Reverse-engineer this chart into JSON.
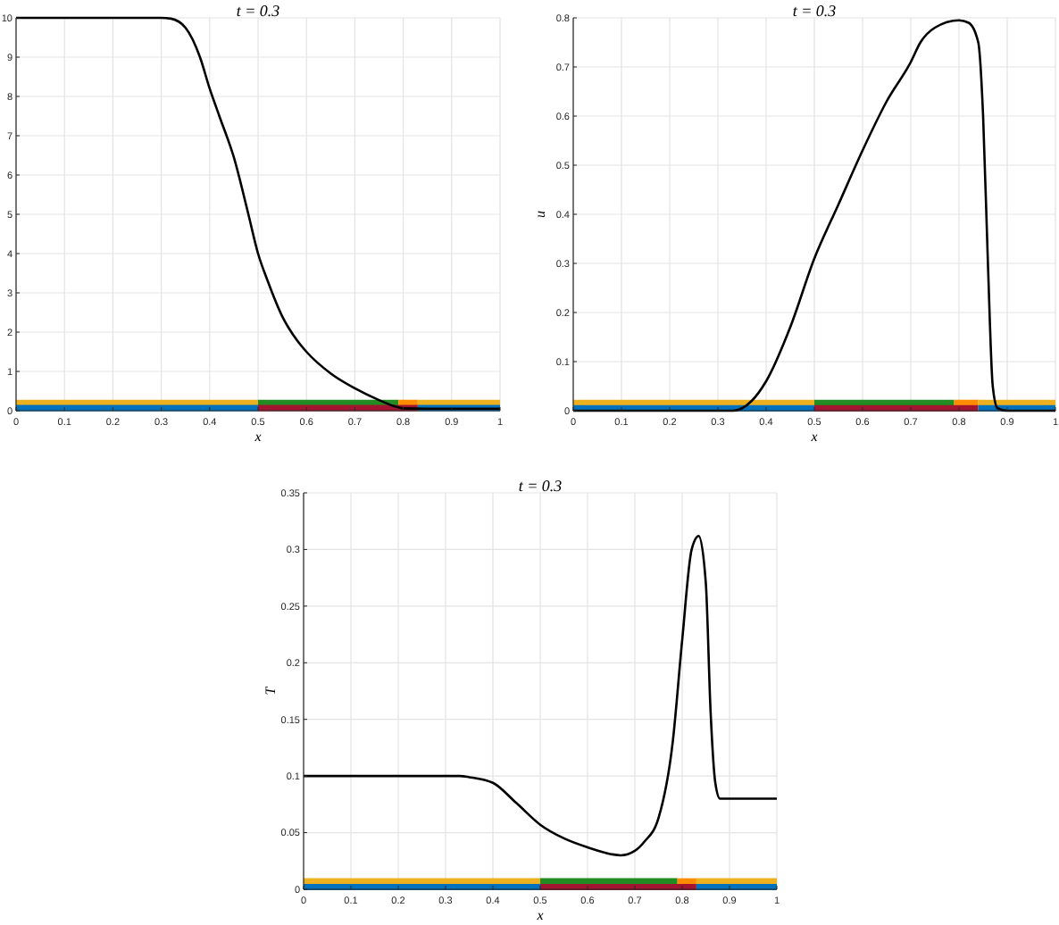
{
  "chart_data": [
    {
      "type": "line",
      "title": "t = 0.3",
      "xlabel": "x",
      "xlim": [
        0,
        1
      ],
      "ylim": [
        0,
        10
      ],
      "xticks": [
        0,
        0.1,
        0.2,
        0.3,
        0.4,
        0.5,
        0.6,
        0.7,
        0.8,
        0.9,
        1
      ],
      "yticks": [
        0,
        1,
        2,
        3,
        4,
        5,
        6,
        7,
        8,
        9,
        10
      ],
      "grid": true,
      "series": [
        {
          "type": "step",
          "color": "#edb120",
          "x": [
            0,
            0.5
          ],
          "values": [
            0.2,
            0.2
          ]
        },
        {
          "type": "step",
          "color": "#228b22",
          "x": [
            0.5,
            0.79
          ],
          "values": [
            0.2,
            0.2
          ]
        },
        {
          "type": "step",
          "color": "#ff8c00",
          "x": [
            0.79,
            0.83
          ],
          "values": [
            0.2,
            0.2
          ]
        },
        {
          "type": "step",
          "color": "#edb120",
          "x": [
            0.83,
            1
          ],
          "values": [
            0.2,
            0.2
          ]
        },
        {
          "type": "step",
          "color": "#0072bd",
          "x": [
            0,
            0.5
          ],
          "values": [
            0.07,
            0.07
          ]
        },
        {
          "type": "step",
          "color": "#a2142f",
          "x": [
            0.5,
            0.83
          ],
          "values": [
            0.07,
            0.07
          ]
        },
        {
          "type": "step",
          "color": "#0072bd",
          "x": [
            0.83,
            1
          ],
          "values": [
            0.07,
            0.07
          ]
        },
        {
          "type": "line",
          "color": "#000000",
          "x": [
            0,
            0.3,
            0.32,
            0.35,
            0.38,
            0.4,
            0.42,
            0.45,
            0.48,
            0.5,
            0.52,
            0.55,
            0.58,
            0.6,
            0.65,
            0.7,
            0.75,
            0.78,
            0.8,
            0.85,
            1
          ],
          "values": [
            10,
            10,
            9.98,
            9.75,
            9.0,
            8.2,
            7.5,
            6.45,
            5.0,
            4.0,
            3.3,
            2.4,
            1.8,
            1.5,
            0.95,
            0.57,
            0.27,
            0.12,
            0.06,
            0.05,
            0.05
          ]
        }
      ]
    },
    {
      "type": "line",
      "title": "t = 0.3",
      "xlabel": "x",
      "ylabel": "u",
      "xlim": [
        0,
        1
      ],
      "ylim": [
        0,
        0.8
      ],
      "xticks": [
        0,
        0.1,
        0.2,
        0.3,
        0.4,
        0.5,
        0.6,
        0.7,
        0.8,
        0.9,
        1
      ],
      "yticks": [
        0,
        0.1,
        0.2,
        0.3,
        0.4,
        0.5,
        0.6,
        0.7,
        0.8
      ],
      "grid": true,
      "series": [
        {
          "type": "step",
          "color": "#edb120",
          "x": [
            0,
            0.5
          ],
          "values": [
            0.016,
            0.016
          ]
        },
        {
          "type": "step",
          "color": "#228b22",
          "x": [
            0.5,
            0.79
          ],
          "values": [
            0.016,
            0.016
          ]
        },
        {
          "type": "step",
          "color": "#ff8c00",
          "x": [
            0.79,
            0.84
          ],
          "values": [
            0.016,
            0.016
          ]
        },
        {
          "type": "step",
          "color": "#edb120",
          "x": [
            0.84,
            1
          ],
          "values": [
            0.016,
            0.016
          ]
        },
        {
          "type": "step",
          "color": "#0072bd",
          "x": [
            0,
            0.5
          ],
          "values": [
            0.005,
            0.005
          ]
        },
        {
          "type": "step",
          "color": "#a2142f",
          "x": [
            0.5,
            0.84
          ],
          "values": [
            0.005,
            0.005
          ]
        },
        {
          "type": "step",
          "color": "#0072bd",
          "x": [
            0.84,
            1
          ],
          "values": [
            0.005,
            0.005
          ]
        },
        {
          "type": "line",
          "color": "#000000",
          "x": [
            0,
            0.33,
            0.35,
            0.37,
            0.4,
            0.45,
            0.5,
            0.55,
            0.6,
            0.65,
            0.7,
            0.72,
            0.75,
            0.8,
            0.82,
            0.84,
            0.85,
            0.86,
            0.87,
            0.88,
            0.9,
            1
          ],
          "values": [
            0,
            0,
            0.005,
            0.02,
            0.06,
            0.17,
            0.31,
            0.42,
            0.53,
            0.63,
            0.71,
            0.75,
            0.78,
            0.795,
            0.79,
            0.75,
            0.6,
            0.3,
            0.05,
            0.005,
            0,
            0
          ]
        }
      ]
    },
    {
      "type": "line",
      "title": "t = 0.3",
      "xlabel": "x",
      "ylabel": "T",
      "xlim": [
        0,
        1
      ],
      "ylim": [
        0,
        0.35
      ],
      "xticks": [
        0,
        0.1,
        0.2,
        0.3,
        0.4,
        0.5,
        0.6,
        0.7,
        0.8,
        0.9,
        1
      ],
      "yticks": [
        0,
        0.05,
        0.1,
        0.15,
        0.2,
        0.25,
        0.3,
        0.35
      ],
      "grid": true,
      "series": [
        {
          "type": "step",
          "color": "#edb120",
          "x": [
            0,
            0.5
          ],
          "values": [
            0.007,
            0.007
          ]
        },
        {
          "type": "step",
          "color": "#228b22",
          "x": [
            0.5,
            0.79
          ],
          "values": [
            0.007,
            0.007
          ]
        },
        {
          "type": "step",
          "color": "#ff8c00",
          "x": [
            0.79,
            0.83
          ],
          "values": [
            0.007,
            0.007
          ]
        },
        {
          "type": "step",
          "color": "#edb120",
          "x": [
            0.83,
            1
          ],
          "values": [
            0.007,
            0.007
          ]
        },
        {
          "type": "step",
          "color": "#0072bd",
          "x": [
            0,
            0.5
          ],
          "values": [
            0.002,
            0.002
          ]
        },
        {
          "type": "step",
          "color": "#a2142f",
          "x": [
            0.5,
            0.83
          ],
          "values": [
            0.002,
            0.002
          ]
        },
        {
          "type": "step",
          "color": "#0072bd",
          "x": [
            0.83,
            1
          ],
          "values": [
            0.002,
            0.002
          ]
        },
        {
          "type": "line",
          "color": "#000000",
          "x": [
            0,
            0.33,
            0.35,
            0.4,
            0.45,
            0.5,
            0.55,
            0.6,
            0.65,
            0.67,
            0.7,
            0.72,
            0.75,
            0.78,
            0.8,
            0.82,
            0.835,
            0.85,
            0.86,
            0.87,
            0.88,
            0.9,
            1
          ],
          "values": [
            0.1,
            0.1,
            0.099,
            0.094,
            0.076,
            0.057,
            0.045,
            0.037,
            0.031,
            0.03,
            0.034,
            0.042,
            0.063,
            0.13,
            0.22,
            0.3,
            0.312,
            0.27,
            0.157,
            0.094,
            0.08,
            0.08,
            0.08
          ]
        }
      ]
    }
  ]
}
